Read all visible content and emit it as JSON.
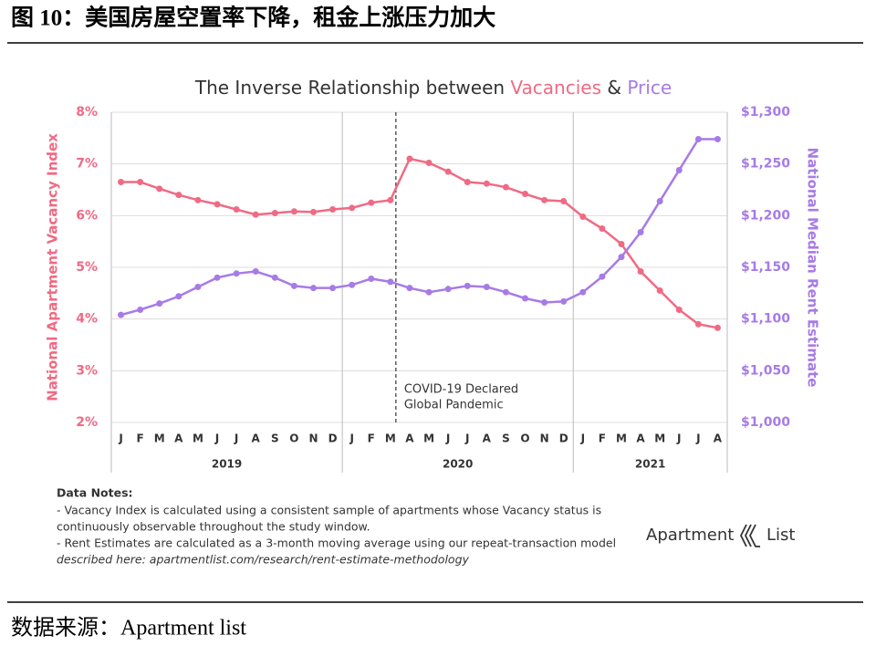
{
  "header": {
    "title": "图 10：美国房屋空置率下降，租金上涨压力加大"
  },
  "chart_data": {
    "type": "line",
    "title": [
      "The Inverse Relationship between ",
      "Vacancies",
      " & ",
      "Price"
    ],
    "ylabel": "National Apartment Vacancy Index",
    "y2label": "National Median Rent Estimate",
    "categories": [
      "J",
      "F",
      "M",
      "A",
      "M",
      "J",
      "J",
      "A",
      "S",
      "O",
      "N",
      "D",
      "J",
      "F",
      "M",
      "A",
      "M",
      "J",
      "J",
      "A",
      "S",
      "O",
      "N",
      "D",
      "J",
      "F",
      "M",
      "A",
      "M",
      "J",
      "J",
      "A"
    ],
    "years": [
      "2019",
      "2020",
      "2021"
    ],
    "ylim": [
      2,
      8
    ],
    "yticks": [
      {
        "value": 2,
        "label": "2%"
      },
      {
        "value": 3,
        "label": "3%"
      },
      {
        "value": 4,
        "label": "4%"
      },
      {
        "value": 5,
        "label": "5%"
      },
      {
        "value": 6,
        "label": "6%"
      },
      {
        "value": 7,
        "label": "7%"
      },
      {
        "value": 8,
        "label": "8%"
      }
    ],
    "y2lim": [
      1000,
      1300
    ],
    "y2ticks": [
      {
        "value": 1000,
        "label": "$1,000"
      },
      {
        "value": 1050,
        "label": "$1,050"
      },
      {
        "value": 1100,
        "label": "$1,100"
      },
      {
        "value": 1150,
        "label": "$1,150"
      },
      {
        "value": 1200,
        "label": "$1,200"
      },
      {
        "value": 1250,
        "label": "$1,250"
      },
      {
        "value": 1300,
        "label": "$1,300"
      }
    ],
    "grid": true,
    "series": [
      {
        "name": "Vacancies",
        "color": "#f06a84",
        "values": [
          6.65,
          6.65,
          6.52,
          6.4,
          6.3,
          6.22,
          6.12,
          6.02,
          6.05,
          6.08,
          6.07,
          6.12,
          6.15,
          6.25,
          6.3,
          7.1,
          7.02,
          6.85,
          6.65,
          6.62,
          6.55,
          6.42,
          6.3,
          6.28,
          5.98,
          5.75,
          5.45,
          4.92,
          4.55,
          4.18,
          3.9,
          3.83
        ]
      },
      {
        "name": "Price",
        "color": "#a77be6",
        "axis": "y2",
        "values": [
          1104,
          1109,
          1115,
          1122,
          1131,
          1140,
          1144,
          1146,
          1140,
          1132,
          1130,
          1130,
          1133,
          1139,
          1136,
          1130,
          1126,
          1129,
          1132,
          1131,
          1126,
          1120,
          1116,
          1117,
          1126,
          1141,
          1160,
          1184,
          1214,
          1244,
          1274,
          1274
        ]
      }
    ],
    "annotation": [
      "COVID-19 Declared",
      "Global Pandemic"
    ]
  },
  "notes": {
    "heading": "Data Notes:",
    "lines": [
      "- Vacancy Index is calculated using a consistent sample of apartments whose Vacancy status is",
      "continuously observable throughout the study window.",
      "- Rent Estimates are calculated as a 3-month moving average using our repeat-transaction model",
      "described here: apartmentlist.com/research/rent-estimate-methodology"
    ]
  },
  "logo": [
    "Apartment",
    "List"
  ],
  "source": "数据来源：Apartment list"
}
